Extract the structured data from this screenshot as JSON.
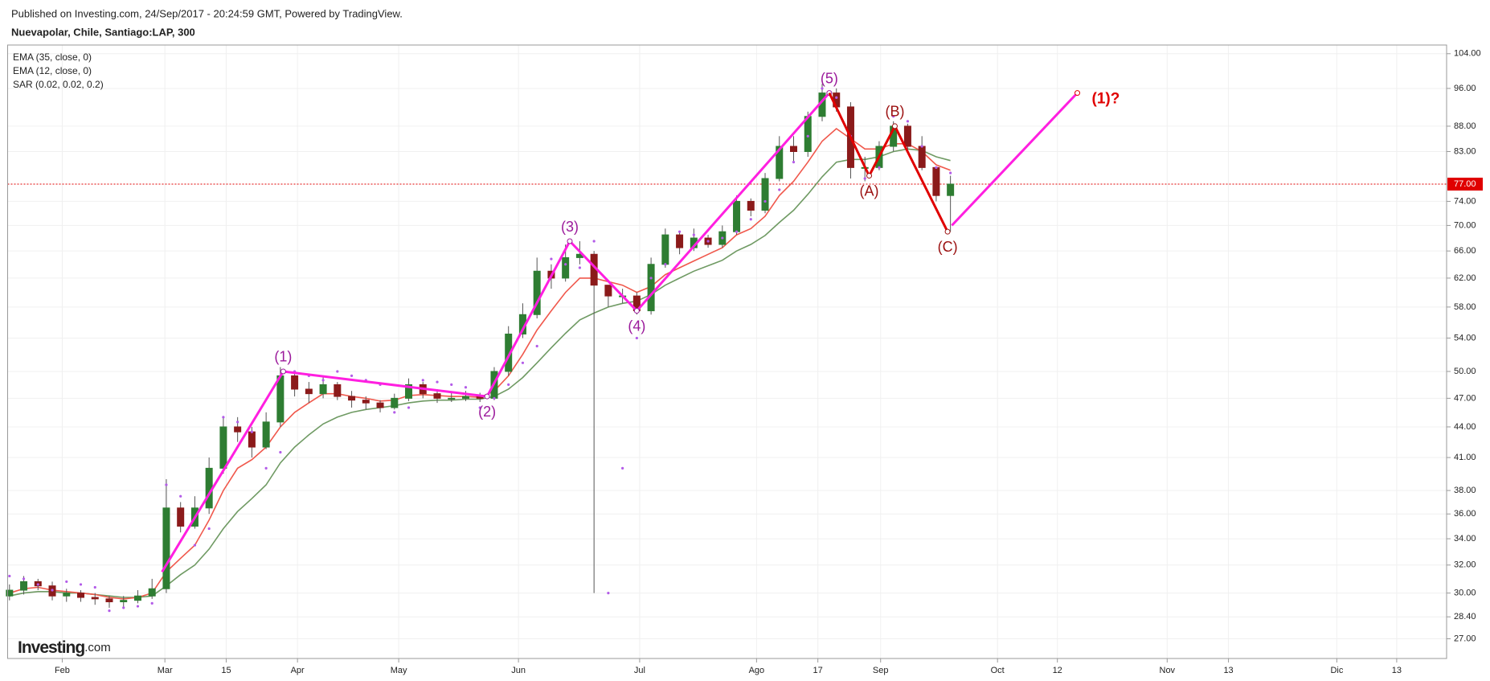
{
  "chart_data": {
    "type": "candlestick",
    "title": "Published on Investing.com, 24/Sep/2017 - 20:24:59 GMT, Powered by TradingView.",
    "subtitle": "Nuevapolar, Chile, Santiago:LAP, 300",
    "watermark": "Investing",
    "watermark_suffix": ".com",
    "y_scale": "log",
    "grid": true,
    "up_color": "#2e7d32",
    "down_color": "#8b1a1a",
    "xlim": [
      -0.13,
      100.8
    ],
    "ylim": [
      25.8,
      106.1
    ],
    "xticks": [
      {
        "value": 3.7,
        "label": "Feb"
      },
      {
        "value": 10.9,
        "label": "Mar"
      },
      {
        "value": 15.2,
        "label": "15"
      },
      {
        "value": 20.2,
        "label": "Apr"
      },
      {
        "value": 27.3,
        "label": "May"
      },
      {
        "value": 35.7,
        "label": "Jun"
      },
      {
        "value": 44.2,
        "label": "Jul"
      },
      {
        "value": 52.4,
        "label": "Ago"
      },
      {
        "value": 56.7,
        "label": "17"
      },
      {
        "value": 61.1,
        "label": "Sep"
      },
      {
        "value": 69.3,
        "label": "Oct"
      },
      {
        "value": 73.5,
        "label": "12"
      },
      {
        "value": 81.2,
        "label": "Nov"
      },
      {
        "value": 85.5,
        "label": "13"
      },
      {
        "value": 93.1,
        "label": "Dic"
      },
      {
        "value": 97.3,
        "label": "13"
      }
    ],
    "yticks": [
      {
        "value": 104,
        "label": "104.00"
      },
      {
        "value": 96,
        "label": "96.00"
      },
      {
        "value": 88,
        "label": "88.00"
      },
      {
        "value": 83,
        "label": "83.00"
      },
      {
        "value": 74,
        "label": "74.00"
      },
      {
        "value": 70,
        "label": "70.00"
      },
      {
        "value": 66,
        "label": "66.00"
      },
      {
        "value": 62,
        "label": "62.00"
      },
      {
        "value": 58,
        "label": "58.00"
      },
      {
        "value": 54,
        "label": "54.00"
      },
      {
        "value": 50,
        "label": "50.00"
      },
      {
        "value": 47,
        "label": "47.00"
      },
      {
        "value": 44,
        "label": "44.00"
      },
      {
        "value": 41,
        "label": "41.00"
      },
      {
        "value": 38,
        "label": "38.00"
      },
      {
        "value": 36,
        "label": "36.00"
      },
      {
        "value": 34,
        "label": "34.00"
      },
      {
        "value": 32,
        "label": "32.00"
      },
      {
        "value": 30,
        "label": "30.00"
      },
      {
        "value": 28.4,
        "label": "28.40"
      },
      {
        "value": 27,
        "label": "27.00"
      }
    ],
    "last_price": {
      "value": 77,
      "label": "77.00",
      "color": "#e00000"
    },
    "x": [
      0,
      1,
      2,
      3,
      4,
      5,
      6,
      7,
      8,
      9,
      10,
      11,
      12,
      13,
      14,
      15,
      16,
      17,
      18,
      19,
      20,
      21,
      22,
      23,
      24,
      25,
      26,
      27,
      28,
      29,
      30,
      31,
      32,
      33,
      34,
      35,
      36,
      37,
      38,
      39,
      40,
      41,
      42,
      43,
      44,
      45,
      46,
      47,
      48,
      49,
      50,
      51,
      52,
      53,
      54,
      55,
      56,
      57,
      58,
      59,
      60,
      61,
      62,
      63,
      64,
      65,
      66
    ],
    "candles": {
      "open": [
        29.8,
        30.2,
        30.8,
        30.5,
        29.8,
        30,
        29.7,
        29.6,
        29.4,
        29.5,
        29.8,
        30.3,
        36.5,
        35,
        36.5,
        40,
        44,
        43.5,
        42,
        44.5,
        49.5,
        48,
        47.5,
        48.5,
        47.2,
        46.8,
        46.5,
        46,
        47,
        48.5,
        47.5,
        47,
        47,
        47.2,
        47,
        50,
        54.5,
        57,
        63,
        62,
        65,
        65.5,
        61,
        59.5,
        59.5,
        57.5,
        64,
        68.5,
        66.5,
        68,
        67,
        69,
        74,
        72.5,
        78,
        84,
        83,
        90,
        95,
        92,
        80,
        80,
        84,
        88,
        84,
        80,
        75
      ],
      "high": [
        30.6,
        31.2,
        31,
        30.8,
        30.3,
        30.2,
        30,
        29.8,
        29.8,
        30.2,
        31,
        39,
        37,
        37.5,
        41,
        45,
        45,
        44,
        45.5,
        50.5,
        50,
        48.8,
        49.5,
        48.8,
        47.8,
        47.2,
        46.8,
        47.5,
        49.2,
        48.8,
        48,
        47.6,
        47.8,
        47.6,
        50.5,
        55.5,
        58.5,
        65,
        64,
        67,
        67.5,
        66,
        61,
        60.5,
        60,
        65,
        69.5,
        69,
        69.5,
        68.5,
        70,
        75,
        74.5,
        79,
        86,
        86,
        91,
        97,
        96,
        93,
        82,
        85,
        89,
        88.5,
        86,
        80,
        78.5
      ],
      "low": [
        29.5,
        29.9,
        30.2,
        29.5,
        29.4,
        29.4,
        29.2,
        29,
        29,
        29.3,
        29.6,
        30,
        34.5,
        34.8,
        36,
        39.5,
        42.5,
        41,
        41.8,
        44,
        47.2,
        46.5,
        47,
        46.8,
        46,
        45.8,
        45.5,
        45.8,
        46.7,
        47,
        46.5,
        46.6,
        46.7,
        46.6,
        46.8,
        49.5,
        54,
        56.5,
        60.5,
        61.5,
        64,
        30,
        58,
        58.5,
        57,
        57,
        63.5,
        65.5,
        66,
        66.5,
        66.5,
        68.5,
        71.5,
        72,
        77.5,
        81,
        82,
        89,
        91,
        78,
        77.5,
        79.5,
        83,
        83.5,
        79.5,
        74,
        69
      ],
      "close": [
        30.2,
        30.8,
        30.5,
        29.8,
        30,
        29.7,
        29.6,
        29.4,
        29.5,
        29.8,
        30.3,
        36.5,
        35,
        36.5,
        40,
        44,
        43.5,
        42,
        44.5,
        49.5,
        48,
        47.5,
        48.5,
        47.2,
        46.8,
        46.5,
        46,
        47,
        48.5,
        47.5,
        47,
        47,
        47.2,
        47,
        50,
        54.5,
        57,
        63,
        62,
        65,
        65.5,
        61,
        59.5,
        59.5,
        57.5,
        64,
        68.5,
        66.5,
        68,
        67,
        69,
        74,
        72.5,
        78,
        84,
        83,
        90,
        95,
        92,
        80,
        80,
        84,
        88,
        84,
        80,
        75,
        77
      ]
    },
    "series": [
      {
        "name": "EMA (35, close, 0)",
        "color": "#6f9a63",
        "style": "line",
        "values": [
          29.8,
          30,
          30.1,
          30.1,
          30,
          30,
          29.9,
          29.8,
          29.7,
          29.7,
          29.8,
          30.5,
          31.3,
          32,
          33.2,
          34.8,
          36.2,
          37.3,
          38.5,
          40.5,
          42,
          43.2,
          44.3,
          45,
          45.5,
          45.8,
          46,
          46.2,
          46.5,
          46.7,
          46.8,
          46.8,
          46.9,
          46.9,
          47.2,
          48,
          49.3,
          51,
          52.8,
          54.6,
          56.3,
          57.2,
          58,
          58.5,
          58.8,
          59.7,
          61,
          62,
          63,
          63.8,
          64.6,
          66,
          67,
          68.4,
          70.5,
          72.5,
          75.2,
          78.3,
          81,
          81.5,
          81.5,
          82,
          83,
          83.5,
          83.2,
          82,
          81.3
        ]
      },
      {
        "name": "EMA (12, close, 0)",
        "color": "#f0584c",
        "style": "line",
        "values": [
          30,
          30.3,
          30.4,
          30.2,
          30.1,
          30,
          29.9,
          29.7,
          29.6,
          29.7,
          30,
          31.5,
          32.5,
          33.5,
          35.5,
          38,
          40,
          40.8,
          42,
          44,
          45.5,
          46.5,
          47.5,
          47.5,
          47.2,
          47,
          46.7,
          46.8,
          47.3,
          47.4,
          47.3,
          47.2,
          47.2,
          47.1,
          47.8,
          49.5,
          52,
          55,
          57.5,
          60,
          62,
          62,
          61.5,
          61,
          60,
          60.8,
          62.5,
          63.5,
          64.5,
          65.5,
          66.5,
          68.5,
          69.5,
          71.5,
          75,
          77.5,
          81,
          85,
          87.5,
          85.5,
          83.5,
          83.5,
          84.5,
          84.5,
          83,
          80.5,
          79.5
        ]
      },
      {
        "name": "SAR (0.02, 0.02, 0.2)",
        "color": "#b35ce8",
        "style": "dots",
        "values": [
          31.2,
          31,
          30.6,
          30.2,
          30.8,
          30.6,
          30.4,
          28.8,
          29,
          29.1,
          29.3,
          38.5,
          37.5,
          33.5,
          34.8,
          45,
          44.5,
          43.5,
          40,
          41.5,
          50,
          49.5,
          49,
          50,
          49.5,
          49,
          48.5,
          45.5,
          46,
          49,
          48.8,
          48.5,
          48.2,
          46,
          47,
          48.5,
          51,
          53,
          64.8,
          64,
          63.5,
          67.5,
          30,
          40,
          54,
          62,
          64,
          69,
          68.5,
          67.5,
          68,
          69,
          71,
          74,
          76,
          81,
          86,
          96,
          94,
          86,
          78,
          80,
          90,
          89,
          84,
          80,
          79
        ]
      }
    ],
    "waves": [
      {
        "color": "#ff1fe0",
        "label_color": "#9b1a9b",
        "points": [
          {
            "x": 10.7,
            "y": 31.5
          },
          {
            "x": 19.2,
            "y": 50,
            "label": "(1)"
          },
          {
            "x": 33.5,
            "y": 47.2,
            "label": "(2)"
          },
          {
            "x": 39.3,
            "y": 67.5,
            "label": "(3)"
          },
          {
            "x": 44,
            "y": 57.5,
            "label": "(4)"
          },
          {
            "x": 57.5,
            "y": 95,
            "label": "(5)"
          }
        ]
      },
      {
        "color": "#e00000",
        "label_color": "#9b1010",
        "points": [
          {
            "x": 57.5,
            "y": 95
          },
          {
            "x": 60.3,
            "y": 78.5,
            "label": "(A)"
          },
          {
            "x": 62.1,
            "y": 88,
            "label": "(B)"
          },
          {
            "x": 65.8,
            "y": 69,
            "label": "(C)"
          }
        ]
      },
      {
        "color": "#ff1fe0",
        "label_color": "#e00000",
        "points": [
          {
            "x": 66.1,
            "y": 70
          },
          {
            "x": 74.9,
            "y": 95,
            "label": "(1)?"
          }
        ]
      }
    ]
  }
}
